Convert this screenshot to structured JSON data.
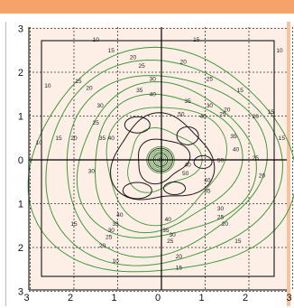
{
  "colors": {
    "top_band": "#f5a26b",
    "plot_bg": "#fdeee6",
    "grid": "#333333",
    "axis": "#000000",
    "contour_green": "#3f9a3a",
    "contour_black": "#1a1a1a"
  },
  "chart_data": {
    "type": "contour",
    "title": "",
    "xlabel": "",
    "ylabel": "",
    "xlim": [
      -3,
      3
    ],
    "ylim": [
      -3,
      3
    ],
    "grid": "dotted",
    "x_tick_labels": [
      "3",
      "2",
      "1",
      "0",
      "1",
      "2",
      "3"
    ],
    "y_tick_labels": [
      "3",
      "2",
      "1",
      "0",
      "1",
      "2",
      "3"
    ],
    "x_ticks": [
      -3,
      -2,
      -1,
      0,
      1,
      2,
      3
    ],
    "y_ticks": [
      3,
      2,
      1,
      0,
      -1,
      -2,
      -3
    ],
    "contour_levels": [
      10,
      15,
      20,
      25,
      30,
      35,
      40,
      45,
      50
    ],
    "contour_labels": [
      {
        "text": "10",
        "x": -1.5,
        "y": 2.7
      },
      {
        "text": "15",
        "x": -1.15,
        "y": 2.45
      },
      {
        "text": "20",
        "x": -0.65,
        "y": 2.3
      },
      {
        "text": "25",
        "x": -0.45,
        "y": 2.1
      },
      {
        "text": "30",
        "x": -0.2,
        "y": 1.8
      },
      {
        "text": "35",
        "x": -0.5,
        "y": 1.55
      },
      {
        "text": "40",
        "x": -0.2,
        "y": 1.45
      },
      {
        "text": "15",
        "x": 0.8,
        "y": 2.7
      },
      {
        "text": "20",
        "x": 0.5,
        "y": 2.2
      },
      {
        "text": "25",
        "x": 1.1,
        "y": 1.8
      },
      {
        "text": "30",
        "x": 1.1,
        "y": 1.2
      },
      {
        "text": "25",
        "x": 1.4,
        "y": 1.0
      },
      {
        "text": "40",
        "x": 0.95,
        "y": 0.95
      },
      {
        "text": "35",
        "x": 0.6,
        "y": 1.3
      },
      {
        "text": "50",
        "x": 0.45,
        "y": 1.0
      },
      {
        "text": "10",
        "x": -2.6,
        "y": 1.65
      },
      {
        "text": "15",
        "x": -1.9,
        "y": 1.75
      },
      {
        "text": "20",
        "x": -1.65,
        "y": 1.6
      },
      {
        "text": "25",
        "x": -1.5,
        "y": 0.8
      },
      {
        "text": "30",
        "x": -1.4,
        "y": 1.2
      },
      {
        "text": "20",
        "x": -2.0,
        "y": 0.45
      },
      {
        "text": "35",
        "x": -1.35,
        "y": 0.45
      },
      {
        "text": "40",
        "x": -1.15,
        "y": 0.45
      },
      {
        "text": "10",
        "x": -2.8,
        "y": 0.35
      },
      {
        "text": "15",
        "x": -2.35,
        "y": 0.45
      },
      {
        "text": "30",
        "x": -1.6,
        "y": -0.3
      },
      {
        "text": "15",
        "x": 2.5,
        "y": 1.05
      },
      {
        "text": "20",
        "x": 2.15,
        "y": 0.95
      },
      {
        "text": "10",
        "x": 2.7,
        "y": 2.45
      },
      {
        "text": "15",
        "x": 1.8,
        "y": 1.55
      },
      {
        "text": "20",
        "x": 1.5,
        "y": 1.1
      },
      {
        "text": "35",
        "x": 1.65,
        "y": 0.5
      },
      {
        "text": "40",
        "x": 1.7,
        "y": 0.2
      },
      {
        "text": "15",
        "x": 2.75,
        "y": 0.45
      },
      {
        "text": "20",
        "x": 2.3,
        "y": -0.4
      },
      {
        "text": "25",
        "x": 2.15,
        "y": 0.0
      },
      {
        "text": "50",
        "x": 1.35,
        "y": -0.05
      },
      {
        "text": "40",
        "x": 1.05,
        "y": -0.5
      },
      {
        "text": "35",
        "x": 1.05,
        "y": -0.75
      },
      {
        "text": "30",
        "x": 1.35,
        "y": -1.15
      },
      {
        "text": "25",
        "x": 1.35,
        "y": -1.35
      },
      {
        "text": "20",
        "x": 1.45,
        "y": -1.5
      },
      {
        "text": "15",
        "x": 1.75,
        "y": -1.9
      },
      {
        "text": "40",
        "x": -0.95,
        "y": -1.3
      },
      {
        "text": "35",
        "x": -1.05,
        "y": -1.5
      },
      {
        "text": "30",
        "x": -1.15,
        "y": -1.65
      },
      {
        "text": "25",
        "x": -1.2,
        "y": -1.8
      },
      {
        "text": "20",
        "x": -1.35,
        "y": -2.0
      },
      {
        "text": "15",
        "x": -2.0,
        "y": -1.5
      },
      {
        "text": "10",
        "x": -1.05,
        "y": -2.35
      },
      {
        "text": "40",
        "x": 0.15,
        "y": -1.4
      },
      {
        "text": "30",
        "x": 0.25,
        "y": -1.75
      },
      {
        "text": "25",
        "x": 0.2,
        "y": -1.9
      },
      {
        "text": "20",
        "x": 0.4,
        "y": -2.25
      },
      {
        "text": "15",
        "x": 0.4,
        "y": -2.5
      },
      {
        "text": "35",
        "x": 0.1,
        "y": -1.65
      },
      {
        "text": "40",
        "x": 0.6,
        "y": -0.15
      },
      {
        "text": "50",
        "x": 0.55,
        "y": -0.35
      }
    ]
  }
}
